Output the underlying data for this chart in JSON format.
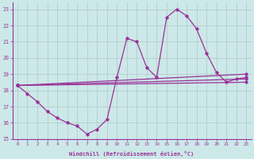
{
  "xlabel": "Windchill (Refroidissement éolien,°C)",
  "background_color": "#cce8e8",
  "grid_color": "#b0c8c8",
  "line_color": "#993399",
  "xlim": [
    -0.5,
    23.5
  ],
  "ylim": [
    15,
    23.4
  ],
  "yticks": [
    15,
    16,
    17,
    18,
    19,
    20,
    21,
    22,
    23
  ],
  "xticks": [
    0,
    1,
    2,
    3,
    4,
    5,
    6,
    7,
    8,
    9,
    10,
    11,
    12,
    13,
    14,
    15,
    16,
    17,
    18,
    19,
    20,
    21,
    22,
    23
  ],
  "curve1_x": [
    0,
    1,
    2,
    3,
    4,
    5,
    6,
    7,
    8,
    9,
    10,
    11,
    12,
    13,
    14,
    15,
    16,
    17,
    18,
    19,
    20,
    21,
    22,
    23
  ],
  "curve1_y": [
    18.3,
    17.8,
    17.3,
    16.7,
    16.3,
    16.0,
    15.8,
    15.3,
    15.6,
    16.2,
    18.8,
    21.2,
    21.0,
    19.4,
    18.8,
    22.5,
    23.0,
    22.6,
    21.8,
    20.3,
    19.1,
    18.5,
    18.7,
    18.8
  ],
  "line1_x": [
    0,
    23
  ],
  "line1_y": [
    18.3,
    19.0
  ],
  "line2_x": [
    0,
    23
  ],
  "line2_y": [
    18.3,
    18.7
  ],
  "line3_x": [
    0,
    23
  ],
  "line3_y": [
    18.3,
    18.5
  ]
}
